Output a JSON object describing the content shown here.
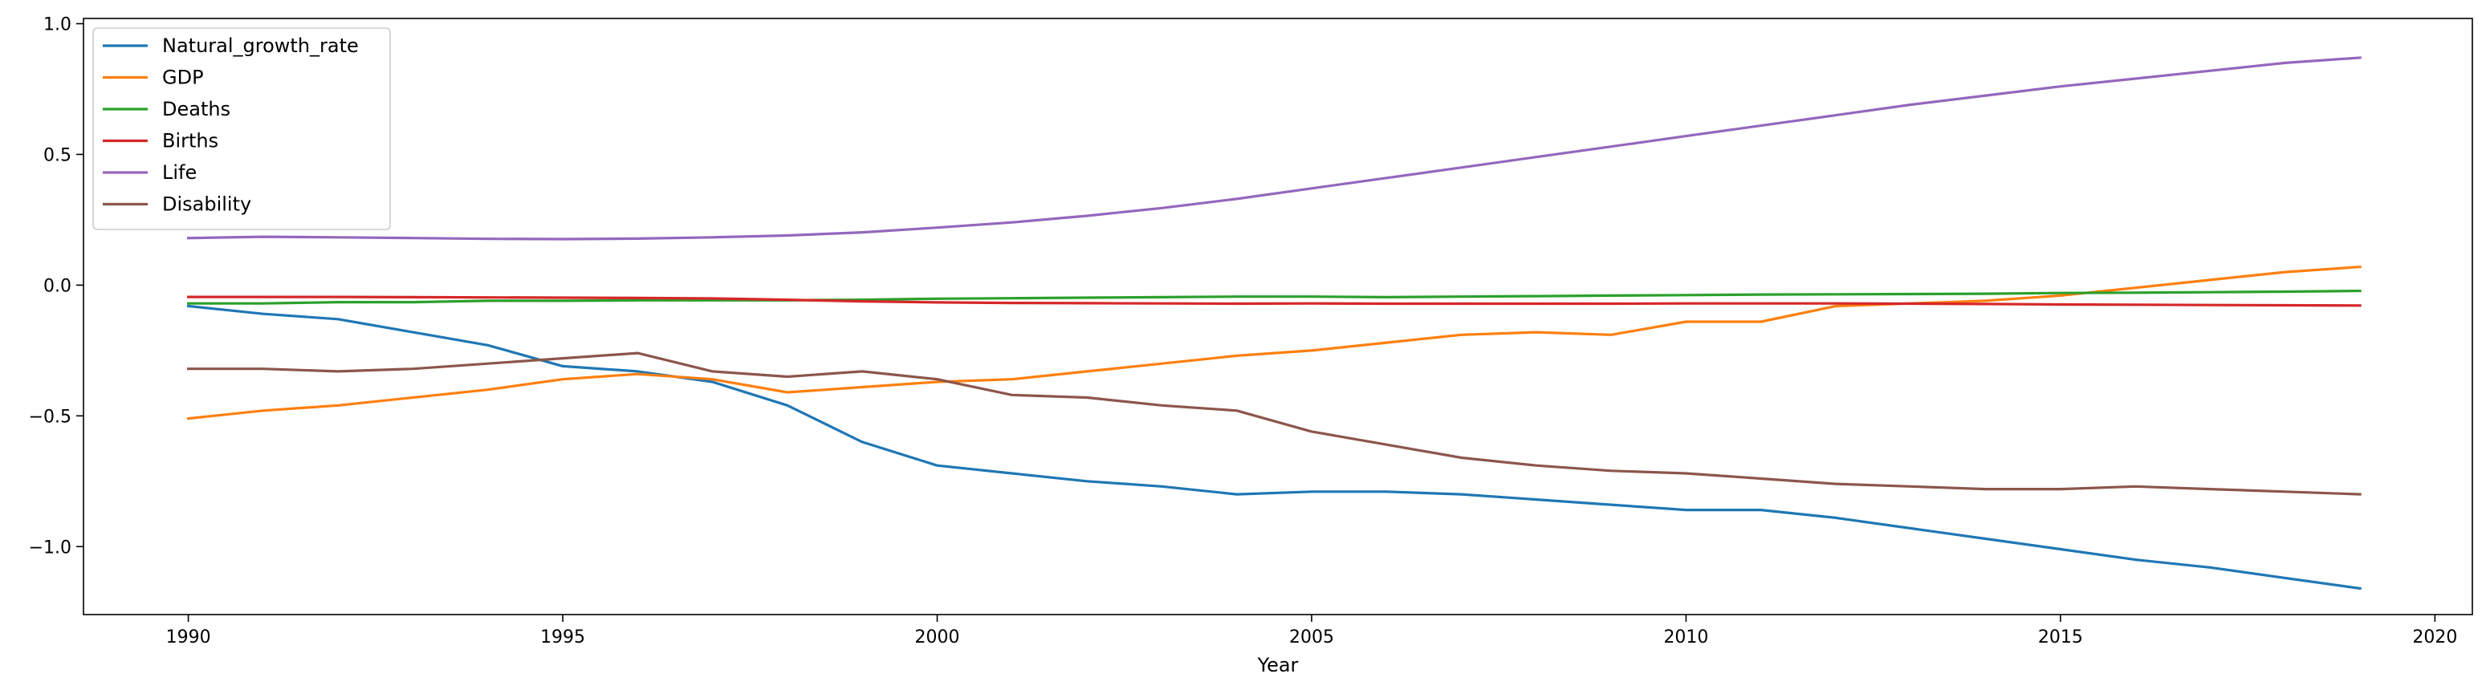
{
  "chart_data": {
    "type": "line",
    "title": "",
    "xlabel": "Year",
    "ylabel": "",
    "xlim": [
      1988.6,
      2020.5
    ],
    "ylim": [
      -1.26,
      1.02
    ],
    "xticks": [
      1990,
      1995,
      2000,
      2005,
      2010,
      2015,
      2020
    ],
    "yticks": [
      {
        "value": 1.0,
        "label": "1.0"
      },
      {
        "value": 0.5,
        "label": "0.5"
      },
      {
        "value": 0.0,
        "label": "0.0"
      },
      {
        "value": -0.5,
        "label": "−0.5"
      },
      {
        "value": -1.0,
        "label": "−1.0"
      }
    ],
    "grid": false,
    "legend_position": "top-left",
    "x": [
      1990,
      1991,
      1992,
      1993,
      1994,
      1995,
      1996,
      1997,
      1998,
      1999,
      2000,
      2001,
      2002,
      2003,
      2004,
      2005,
      2006,
      2007,
      2008,
      2009,
      2010,
      2011,
      2012,
      2013,
      2014,
      2015,
      2016,
      2017,
      2018,
      2019
    ],
    "series": [
      {
        "name": "Natural_growth_rate",
        "color": "#1f77b4",
        "values": [
          -0.08,
          -0.11,
          -0.13,
          -0.18,
          -0.23,
          -0.31,
          -0.33,
          -0.37,
          -0.46,
          -0.6,
          -0.69,
          -0.72,
          -0.75,
          -0.77,
          -0.8,
          -0.79,
          -0.79,
          -0.8,
          -0.82,
          -0.84,
          -0.86,
          -0.86,
          -0.89,
          -0.93,
          -0.97,
          -1.01,
          -1.05,
          -1.08,
          -1.12,
          -1.16
        ]
      },
      {
        "name": "GDP",
        "color": "#ff7f0e",
        "values": [
          -0.51,
          -0.48,
          -0.46,
          -0.43,
          -0.4,
          -0.36,
          -0.34,
          -0.36,
          -0.41,
          -0.39,
          -0.37,
          -0.36,
          -0.33,
          -0.3,
          -0.27,
          -0.25,
          -0.22,
          -0.19,
          -0.18,
          -0.19,
          -0.14,
          -0.14,
          -0.08,
          -0.07,
          -0.06,
          -0.04,
          -0.01,
          0.02,
          0.05,
          0.07
        ]
      },
      {
        "name": "Deaths",
        "color": "#2ca02c",
        "values": [
          -0.07,
          -0.07,
          -0.065,
          -0.065,
          -0.06,
          -0.06,
          -0.058,
          -0.058,
          -0.058,
          -0.056,
          -0.052,
          -0.05,
          -0.048,
          -0.046,
          -0.044,
          -0.044,
          -0.046,
          -0.044,
          -0.042,
          -0.04,
          -0.038,
          -0.036,
          -0.035,
          -0.034,
          -0.033,
          -0.03,
          -0.029,
          -0.027,
          -0.025,
          -0.022
        ]
      },
      {
        "name": "Births",
        "color": "#d62728",
        "values": [
          -0.045,
          -0.045,
          -0.045,
          -0.046,
          -0.047,
          -0.048,
          -0.049,
          -0.051,
          -0.056,
          -0.062,
          -0.066,
          -0.068,
          -0.069,
          -0.07,
          -0.071,
          -0.07,
          -0.071,
          -0.071,
          -0.071,
          -0.071,
          -0.07,
          -0.07,
          -0.07,
          -0.071,
          -0.072,
          -0.074,
          -0.075,
          -0.076,
          -0.077,
          -0.078
        ]
      },
      {
        "name": "Life",
        "color": "#9467bd",
        "values": [
          0.18,
          0.185,
          0.183,
          0.18,
          0.177,
          0.176,
          0.178,
          0.183,
          0.19,
          0.202,
          0.22,
          0.24,
          0.265,
          0.295,
          0.33,
          0.37,
          0.41,
          0.45,
          0.49,
          0.53,
          0.57,
          0.61,
          0.65,
          0.69,
          0.725,
          0.76,
          0.79,
          0.82,
          0.85,
          0.87
        ]
      },
      {
        "name": "Disability",
        "color": "#8c564b",
        "values": [
          -0.32,
          -0.32,
          -0.33,
          -0.32,
          -0.3,
          -0.28,
          -0.26,
          -0.33,
          -0.35,
          -0.33,
          -0.36,
          -0.42,
          -0.43,
          -0.46,
          -0.48,
          -0.56,
          -0.61,
          -0.66,
          -0.69,
          -0.71,
          -0.72,
          -0.74,
          -0.76,
          -0.77,
          -0.78,
          -0.78,
          -0.77,
          -0.78,
          -0.79,
          -0.8
        ]
      }
    ]
  }
}
